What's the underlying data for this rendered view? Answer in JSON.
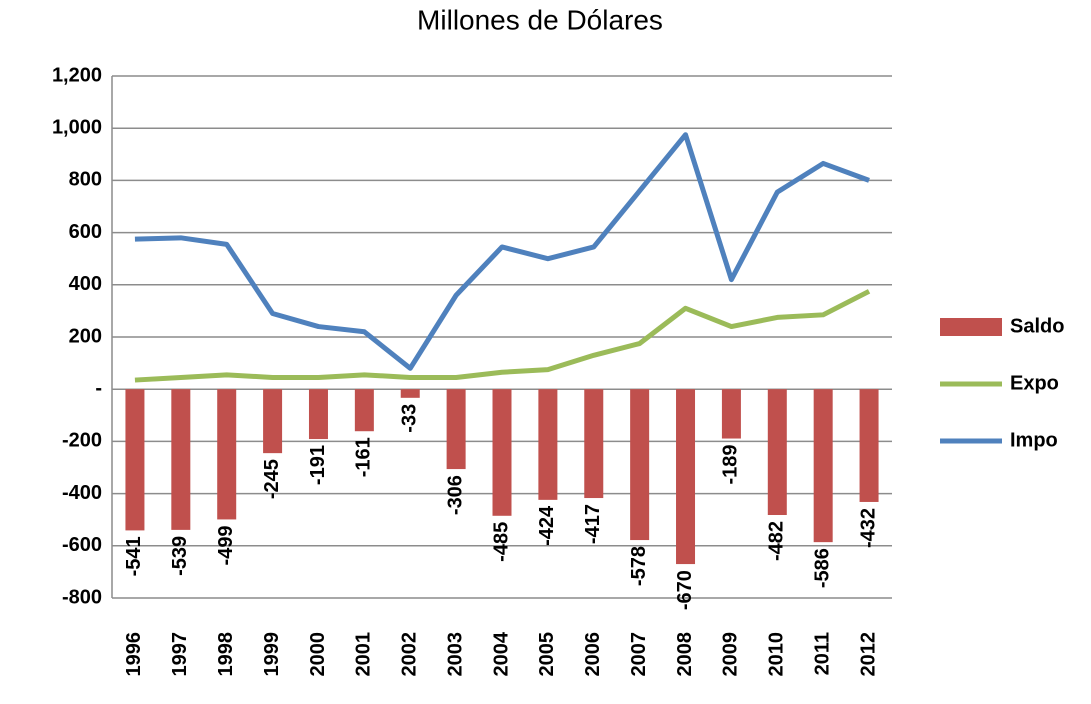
{
  "chart_data": {
    "type": "combo",
    "title": "Millones de Dólares",
    "categories": [
      "1996",
      "1997",
      "1998",
      "1999",
      "2000",
      "2001",
      "2002",
      "2003",
      "2004",
      "2005",
      "2006",
      "2007",
      "2008",
      "2009",
      "2010",
      "2011",
      "2012"
    ],
    "series": [
      {
        "name": "Saldo",
        "type": "bar",
        "color": "#c0504d",
        "values": [
          -541,
          -539,
          -499,
          -245,
          -191,
          -161,
          -33,
          -306,
          -485,
          -424,
          -417,
          -578,
          -670,
          -189,
          -482,
          -586,
          -432
        ]
      },
      {
        "name": "Expo",
        "type": "line",
        "color": "#9bbb59",
        "values": [
          35,
          45,
          55,
          45,
          45,
          55,
          45,
          45,
          65,
          75,
          130,
          175,
          310,
          240,
          275,
          285,
          375
        ]
      },
      {
        "name": "Impo",
        "type": "line",
        "color": "#4f81bd",
        "values": [
          575,
          580,
          555,
          290,
          240,
          220,
          80,
          360,
          545,
          500,
          545,
          760,
          975,
          420,
          755,
          865,
          800
        ]
      }
    ],
    "ylim": [
      -800,
      1200
    ],
    "yticks": [
      -800,
      -600,
      -400,
      -200,
      {
        "value": 0,
        "label": "-"
      },
      200,
      400,
      600,
      800,
      {
        "value": 1000,
        "label": "1,000"
      },
      {
        "value": 1200,
        "label": "1,200"
      }
    ],
    "grid": true,
    "legend": "right"
  }
}
